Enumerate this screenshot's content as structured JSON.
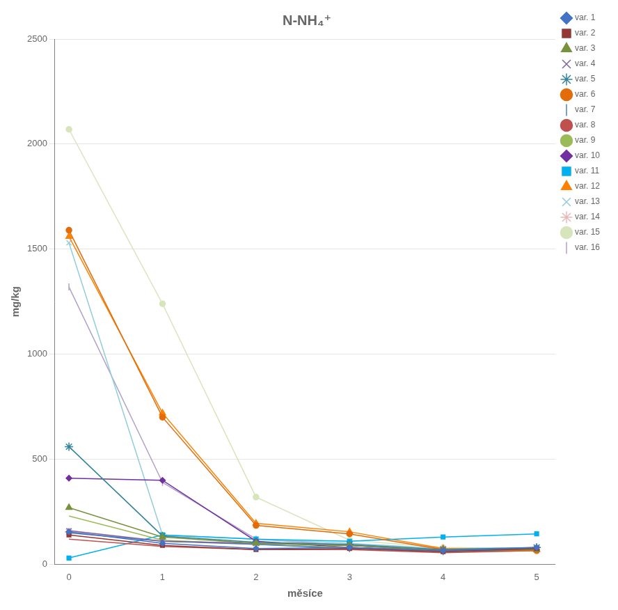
{
  "chart_data": {
    "type": "line",
    "title": "N-NH₄⁺",
    "x_label": "měsíce",
    "y_label": "mg/kg",
    "x": [
      0,
      1,
      2,
      3,
      4,
      5
    ],
    "xlim": [
      -0.15,
      5.2
    ],
    "xticks": [
      0,
      1,
      2,
      3,
      4,
      5
    ],
    "ylim": [
      0,
      2500
    ],
    "yticks": [
      0,
      500,
      1000,
      1500,
      2000,
      2500
    ],
    "grid": true,
    "legend": "right",
    "series": [
      {
        "name": "var. 1",
        "color": "#4472C4",
        "marker": "diamond",
        "values": [
          155,
          100,
          75,
          80,
          65,
          80
        ]
      },
      {
        "name": "var. 2",
        "color": "#943634",
        "marker": "square",
        "values": [
          140,
          90,
          70,
          75,
          60,
          75
        ]
      },
      {
        "name": "var. 3",
        "color": "#76923C",
        "marker": "triangle",
        "values": [
          270,
          130,
          100,
          90,
          65,
          70
        ]
      },
      {
        "name": "var. 4",
        "color": "#8064A2",
        "marker": "x",
        "values": [
          160,
          110,
          100,
          90,
          65,
          75
        ]
      },
      {
        "name": "var. 5",
        "color": "#31849B",
        "marker": "star",
        "values": [
          560,
          135,
          105,
          95,
          70,
          80
        ]
      },
      {
        "name": "var. 6",
        "color": "#E36C09",
        "marker": "circle",
        "values": [
          1590,
          700,
          185,
          145,
          70,
          65
        ]
      },
      {
        "name": "var. 7",
        "color": "#4F81BD",
        "marker": "vline",
        "values": [
          150,
          110,
          95,
          75,
          60,
          70
        ]
      },
      {
        "name": "var. 8",
        "color": "#C0504D",
        "marker": "none",
        "values": [
          120,
          85,
          70,
          70,
          55,
          65
        ]
      },
      {
        "name": "var. 9",
        "color": "#9BBB59",
        "marker": "none",
        "values": [
          230,
          115,
          95,
          80,
          60,
          65
        ]
      },
      {
        "name": "var. 10",
        "color": "#7030A0",
        "marker": "diamond",
        "values": [
          410,
          400,
          110,
          80,
          65,
          70
        ]
      },
      {
        "name": "var. 11",
        "color": "#00B0F0",
        "marker": "square",
        "values": [
          30,
          140,
          120,
          110,
          130,
          145
        ]
      },
      {
        "name": "var. 12",
        "color": "#FF8000",
        "marker": "triangle",
        "values": [
          1560,
          720,
          195,
          155,
          75,
          70
        ]
      },
      {
        "name": "var. 13",
        "color": "#92CDDC",
        "marker": "x",
        "values": [
          1530,
          140,
          120,
          100,
          75,
          80
        ]
      },
      {
        "name": "var. 14",
        "color": "#E6B9B8",
        "marker": "star",
        "values": [
          155,
          110,
          100,
          90,
          70,
          80
        ]
      },
      {
        "name": "var. 15",
        "color": "#D7E4BC",
        "marker": "circle",
        "values": [
          2070,
          1240,
          320,
          115,
          80,
          75
        ]
      },
      {
        "name": "var. 16",
        "color": "#B2A1C7",
        "marker": "vline",
        "values": [
          1320,
          390,
          120,
          90,
          65,
          75
        ]
      }
    ]
  }
}
